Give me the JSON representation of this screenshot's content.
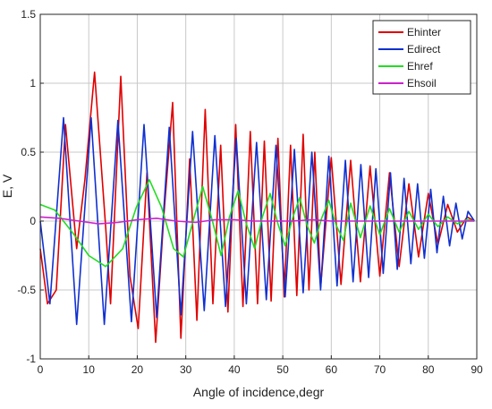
{
  "chart_data": {
    "type": "line",
    "title": "",
    "xlabel": "Angle of incidence,degr",
    "ylabel": "E, V",
    "xlim": [
      0,
      90
    ],
    "ylim": [
      -1,
      1.5
    ],
    "xticks": [
      0,
      10,
      20,
      30,
      40,
      50,
      60,
      70,
      80,
      90
    ],
    "yticks": [
      -1,
      -0.5,
      0,
      0.5,
      1,
      1.5
    ],
    "xtick_labels": [
      "0",
      "10",
      "20",
      "30",
      "40",
      "50",
      "60",
      "70",
      "80",
      "90"
    ],
    "ytick_labels": [
      "-1",
      "-0.5",
      "0",
      "0.5",
      "1",
      "1.5"
    ],
    "grid": true,
    "legend_position": "top-right",
    "series": [
      {
        "name": "Ehinter",
        "color": "#e00000",
        "x": [
          0,
          1.5,
          3.3,
          5.2,
          7.5,
          9.2,
          11.2,
          13.5,
          14.5,
          16.6,
          18.5,
          20.2,
          22.0,
          23.8,
          25.5,
          27.3,
          29.0,
          30.8,
          32.3,
          34.0,
          35.6,
          37.2,
          38.7,
          40.3,
          41.8,
          43.3,
          44.8,
          46.2,
          47.6,
          49.0,
          50.3,
          51.6,
          52.9,
          54.2,
          55.4,
          56.6,
          57.8,
          60.0,
          62.0,
          64.0,
          66.0,
          68.0,
          70.0,
          72.0,
          74.0,
          76.0,
          78.0,
          80.0,
          82.0,
          84.0,
          86.0,
          88.0,
          89.5
        ],
        "y": [
          -0.2,
          -0.6,
          -0.5,
          0.7,
          -0.2,
          0.3,
          1.08,
          -0.05,
          -0.6,
          1.05,
          -0.4,
          -0.78,
          0.35,
          -0.88,
          0.05,
          0.86,
          -0.85,
          0.45,
          -0.72,
          0.81,
          -0.6,
          0.55,
          -0.66,
          0.7,
          -0.62,
          0.65,
          -0.6,
          0.58,
          -0.58,
          0.6,
          -0.55,
          0.55,
          -0.54,
          0.63,
          -0.5,
          0.5,
          -0.48,
          0.46,
          -0.46,
          0.44,
          -0.44,
          0.4,
          -0.4,
          0.35,
          -0.33,
          0.27,
          -0.26,
          0.2,
          -0.17,
          0.12,
          -0.08,
          0.03,
          0.0
        ]
      },
      {
        "name": "Edirect",
        "color": "#1030d0",
        "x": [
          0,
          2.0,
          4.8,
          7.5,
          10.5,
          13.2,
          16.0,
          18.8,
          21.4,
          24.0,
          26.6,
          29.0,
          31.4,
          33.8,
          36.0,
          38.2,
          40.4,
          42.5,
          44.6,
          46.6,
          48.6,
          50.5,
          52.4,
          54.2,
          56.0,
          57.8,
          59.5,
          61.2,
          62.9,
          64.5,
          66.1,
          67.7,
          69.2,
          70.7,
          72.2,
          73.6,
          75.0,
          76.4,
          77.8,
          79.2,
          80.5,
          81.8,
          83.1,
          84.4,
          85.7,
          87.0,
          88.2,
          89.5
        ],
        "y": [
          0.0,
          -0.6,
          0.75,
          -0.75,
          0.75,
          -0.75,
          0.73,
          -0.73,
          0.7,
          -0.7,
          0.68,
          -0.68,
          0.65,
          -0.65,
          0.62,
          -0.62,
          0.6,
          -0.6,
          0.57,
          -0.57,
          0.55,
          -0.55,
          0.52,
          -0.52,
          0.5,
          -0.5,
          0.47,
          -0.47,
          0.44,
          -0.44,
          0.41,
          -0.41,
          0.38,
          -0.38,
          0.35,
          -0.35,
          0.31,
          -0.31,
          0.27,
          -0.27,
          0.23,
          -0.23,
          0.18,
          -0.18,
          0.13,
          -0.13,
          0.07,
          0.0
        ]
      },
      {
        "name": "Ehref",
        "color": "#22dd22",
        "x": [
          0,
          3.0,
          7.0,
          10.0,
          13.5,
          17.0,
          19.8,
          22.5,
          25.0,
          27.5,
          29.5,
          31.5,
          33.5,
          35.5,
          37.3,
          39.0,
          40.8,
          42.5,
          44.2,
          45.8,
          47.4,
          49.0,
          50.5,
          52.0,
          53.5,
          55.0,
          56.5,
          58.0,
          59.5,
          61.0,
          62.5,
          64.0,
          66.0,
          68.0,
          70.0,
          72.0,
          74.0,
          76.0,
          78.0,
          80.0,
          82.0,
          84.0,
          86.0,
          88.0,
          89.5
        ],
        "y": [
          0.12,
          0.08,
          -0.1,
          -0.25,
          -0.33,
          -0.2,
          0.1,
          0.3,
          0.1,
          -0.2,
          -0.26,
          0.0,
          0.25,
          0.0,
          -0.25,
          0.03,
          0.22,
          -0.02,
          -0.2,
          0.03,
          0.2,
          -0.02,
          -0.18,
          0.02,
          0.17,
          -0.03,
          -0.16,
          0.02,
          0.15,
          -0.03,
          -0.14,
          0.13,
          -0.12,
          0.11,
          -0.1,
          0.09,
          -0.08,
          0.07,
          -0.06,
          0.05,
          -0.04,
          0.03,
          -0.02,
          0.01,
          0.0
        ]
      },
      {
        "name": "Ehsoil",
        "color": "#cc22cc",
        "x": [
          0,
          4,
          8,
          12,
          16,
          20,
          24,
          28,
          32,
          36,
          40,
          44,
          48,
          52,
          56,
          60,
          64,
          68,
          72,
          76,
          80,
          84,
          88,
          89.5
        ],
        "y": [
          0.03,
          0.02,
          0.0,
          -0.02,
          -0.01,
          0.01,
          0.02,
          0.0,
          -0.01,
          0.01,
          0.01,
          0.0,
          0.0,
          0.0,
          0.01,
          0.0,
          0.0,
          0.0,
          0.0,
          0.0,
          0.0,
          0.0,
          0.0,
          0.0
        ]
      }
    ]
  }
}
